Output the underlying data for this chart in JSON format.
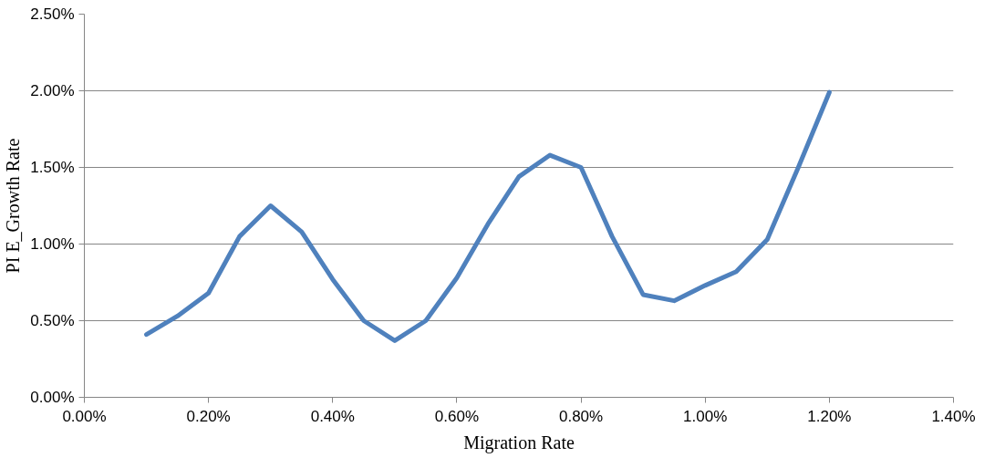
{
  "chart_data": {
    "type": "line",
    "xlabel": "Migration Rate",
    "ylabel": "PI E_Growth Rate",
    "x": [
      0.1,
      0.15,
      0.2,
      0.25,
      0.3,
      0.35,
      0.4,
      0.45,
      0.5,
      0.55,
      0.6,
      0.65,
      0.7,
      0.75,
      0.8,
      0.85,
      0.9,
      0.95,
      1.0,
      1.05,
      1.1,
      1.15,
      1.2
    ],
    "series": [
      {
        "color": "#4f81bd",
        "values": [
          0.41,
          0.53,
          0.68,
          1.05,
          1.25,
          1.08,
          0.77,
          0.5,
          0.37,
          0.5,
          0.78,
          1.13,
          1.44,
          1.58,
          1.5,
          1.05,
          0.67,
          0.63,
          0.73,
          0.82,
          1.03,
          1.5,
          1.99
        ]
      }
    ],
    "xlim": [
      0,
      1.4
    ],
    "ylim": [
      0,
      2.5
    ],
    "xticks": [
      {
        "value": 0,
        "label": "0.00%"
      },
      {
        "value": 0.2,
        "label": "0.20%"
      },
      {
        "value": 0.4,
        "label": "0.40%"
      },
      {
        "value": 0.6,
        "label": "0.60%"
      },
      {
        "value": 0.8,
        "label": "0.80%"
      },
      {
        "value": 1.0,
        "label": "1.00%"
      },
      {
        "value": 1.2,
        "label": "1.20%"
      },
      {
        "value": 1.4,
        "label": "1.40%"
      }
    ],
    "yticks": [
      {
        "value": 0,
        "label": "0.00%"
      },
      {
        "value": 0.5,
        "label": "0.50%"
      },
      {
        "value": 1.0,
        "label": "1.00%"
      },
      {
        "value": 1.5,
        "label": "1.50%"
      },
      {
        "value": 2.0,
        "label": "2.00%"
      },
      {
        "value": 2.5,
        "label": "2.50%"
      }
    ],
    "grid": "y",
    "marker": "none",
    "line_style": "solid"
  }
}
